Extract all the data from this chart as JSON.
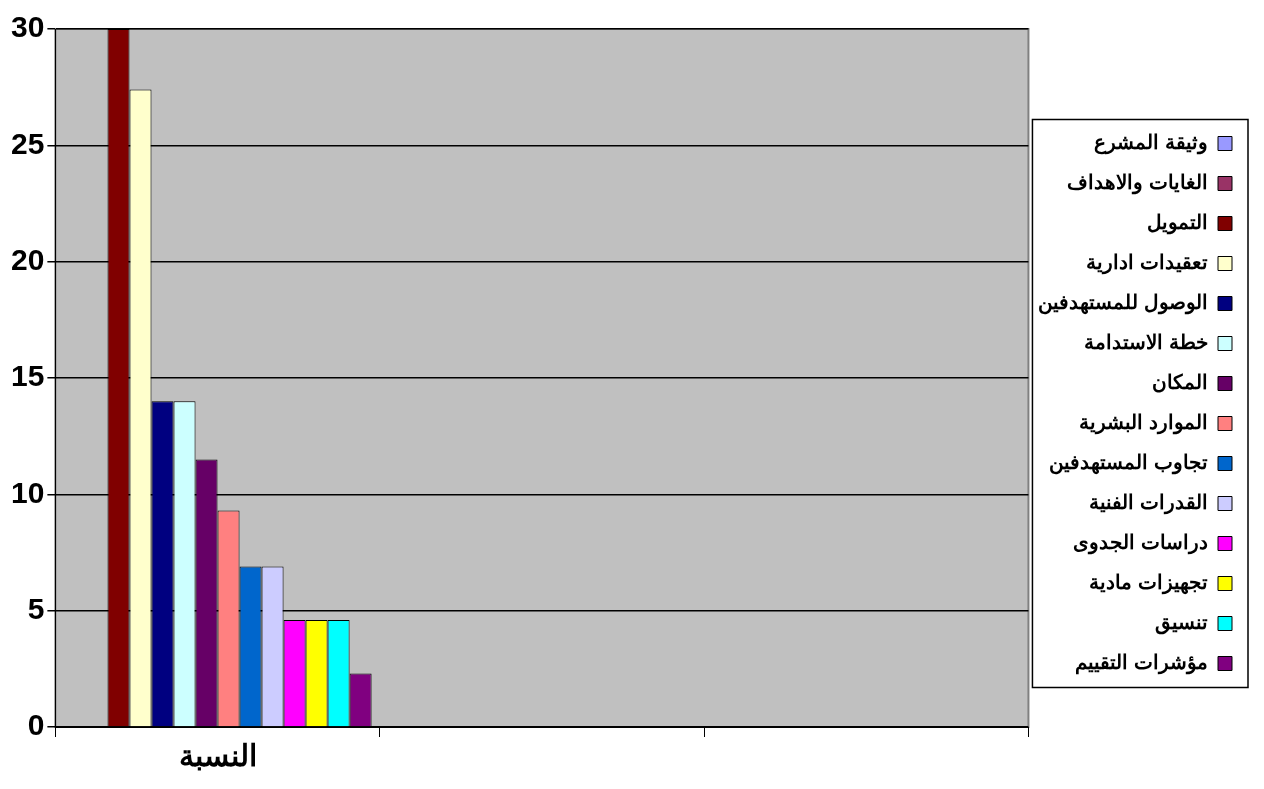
{
  "chart_data": {
    "type": "bar",
    "categories": [
      "النسبة",
      null,
      null
    ],
    "series": [
      {
        "name": "وثيقة المشرع",
        "color": "#9999ff",
        "values": [
          0,
          null,
          null
        ]
      },
      {
        "name": "الغايات والاهداف",
        "color": "#993366",
        "values": [
          0,
          null,
          null
        ]
      },
      {
        "name": "التمويل",
        "color": "#800000",
        "values": [
          30,
          null,
          null
        ]
      },
      {
        "name": "تعقيدات ادارية",
        "color": "#ffffcc",
        "values": [
          27.4,
          null,
          null
        ]
      },
      {
        "name": "الوصول للمستهدفين",
        "color": "#000080",
        "values": [
          14,
          null,
          null
        ]
      },
      {
        "name": "خطة الاستدامة",
        "color": "#ccffff",
        "values": [
          14,
          null,
          null
        ]
      },
      {
        "name": "المكان",
        "color": "#660066",
        "values": [
          11.5,
          null,
          null
        ]
      },
      {
        "name": "الموارد البشرية",
        "color": "#ff8080",
        "values": [
          9.3,
          null,
          null
        ]
      },
      {
        "name": "تجاوب المستهدفين",
        "color": "#0066cc",
        "values": [
          6.9,
          null,
          null
        ]
      },
      {
        "name": "القدرات الفنية",
        "color": "#ccccff",
        "values": [
          6.9,
          null,
          null
        ]
      },
      {
        "name": "دراسات الجدوى",
        "color": "#ff00ff",
        "values": [
          4.6,
          null,
          null
        ]
      },
      {
        "name": "تجهيزات مادية",
        "color": "#ffff00",
        "values": [
          4.6,
          null,
          null
        ]
      },
      {
        "name": "تنسيق",
        "color": "#00ffff",
        "values": [
          4.6,
          null,
          null
        ]
      },
      {
        "name": "مؤشرات التقييم",
        "color": "#800080",
        "values": [
          2.3,
          null,
          null
        ]
      }
    ],
    "ylim": [
      0,
      30
    ],
    "yticks": [
      0,
      5,
      10,
      15,
      20,
      25,
      30
    ],
    "grid": "y",
    "legend": "right"
  }
}
